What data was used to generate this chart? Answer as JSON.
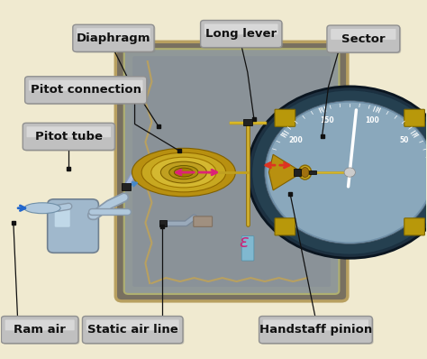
{
  "bg": "#f0ead0",
  "box_fill": "#b8b8b8",
  "box_fill2": "#d0d0d0",
  "box_edge": "#888888",
  "line_color": "#111111",
  "label_color": "#111111",
  "gauge_outer": "#1a2a3a",
  "gauge_ring": "#2a4050",
  "gauge_face": "#7090a0",
  "gauge_face2": "#8aa8b8",
  "body_outer": "#808080",
  "body_inner": "#909090",
  "body_fill": "#a0a8b0",
  "brass1": "#c8a020",
  "brass2": "#d4b030",
  "brass3": "#b89010",
  "silver1": "#aabbcc",
  "silver2": "#bbccdd",
  "tube_dark": "#8899aa",
  "arrow_pink": "#cc2277",
  "arrow_red": "#dd3322",
  "blue_arrow": "#2266cc",
  "labels": {
    "Diaphragm": {
      "bx": 0.265,
      "by": 0.895,
      "bw": 0.175,
      "bh": 0.06,
      "line": [
        [
          0.265,
          0.865
        ],
        [
          0.3,
          0.78
        ],
        [
          0.37,
          0.65
        ]
      ]
    },
    "Long lever": {
      "bx": 0.565,
      "by": 0.907,
      "bw": 0.175,
      "bh": 0.06,
      "line": [
        [
          0.565,
          0.877
        ],
        [
          0.58,
          0.8
        ],
        [
          0.595,
          0.67
        ]
      ]
    },
    "Sector": {
      "bx": 0.852,
      "by": 0.893,
      "bw": 0.155,
      "bh": 0.06,
      "line": [
        [
          0.795,
          0.864
        ],
        [
          0.77,
          0.76
        ],
        [
          0.755,
          0.62
        ]
      ]
    },
    "Pitot connection": {
      "bx": 0.2,
      "by": 0.75,
      "bw": 0.27,
      "bh": 0.06,
      "line": [
        [
          0.315,
          0.72
        ],
        [
          0.315,
          0.655
        ],
        [
          0.42,
          0.58
        ]
      ]
    },
    "Pitot tube": {
      "bx": 0.16,
      "by": 0.62,
      "bw": 0.2,
      "bh": 0.06,
      "line": [
        [
          0.16,
          0.59
        ],
        [
          0.16,
          0.53
        ]
      ]
    },
    "Ram air": {
      "bx": 0.092,
      "by": 0.08,
      "bw": 0.165,
      "bh": 0.06,
      "line": [
        [
          0.04,
          0.11
        ],
        [
          0.03,
          0.38
        ]
      ]
    },
    "Static air line": {
      "bx": 0.31,
      "by": 0.08,
      "bw": 0.22,
      "bh": 0.06,
      "line": [
        [
          0.38,
          0.11
        ],
        [
          0.38,
          0.37
        ]
      ]
    },
    "Handstaff pinion": {
      "bx": 0.74,
      "by": 0.08,
      "bw": 0.25,
      "bh": 0.06,
      "line": [
        [
          0.74,
          0.11
        ],
        [
          0.68,
          0.46
        ]
      ]
    }
  }
}
